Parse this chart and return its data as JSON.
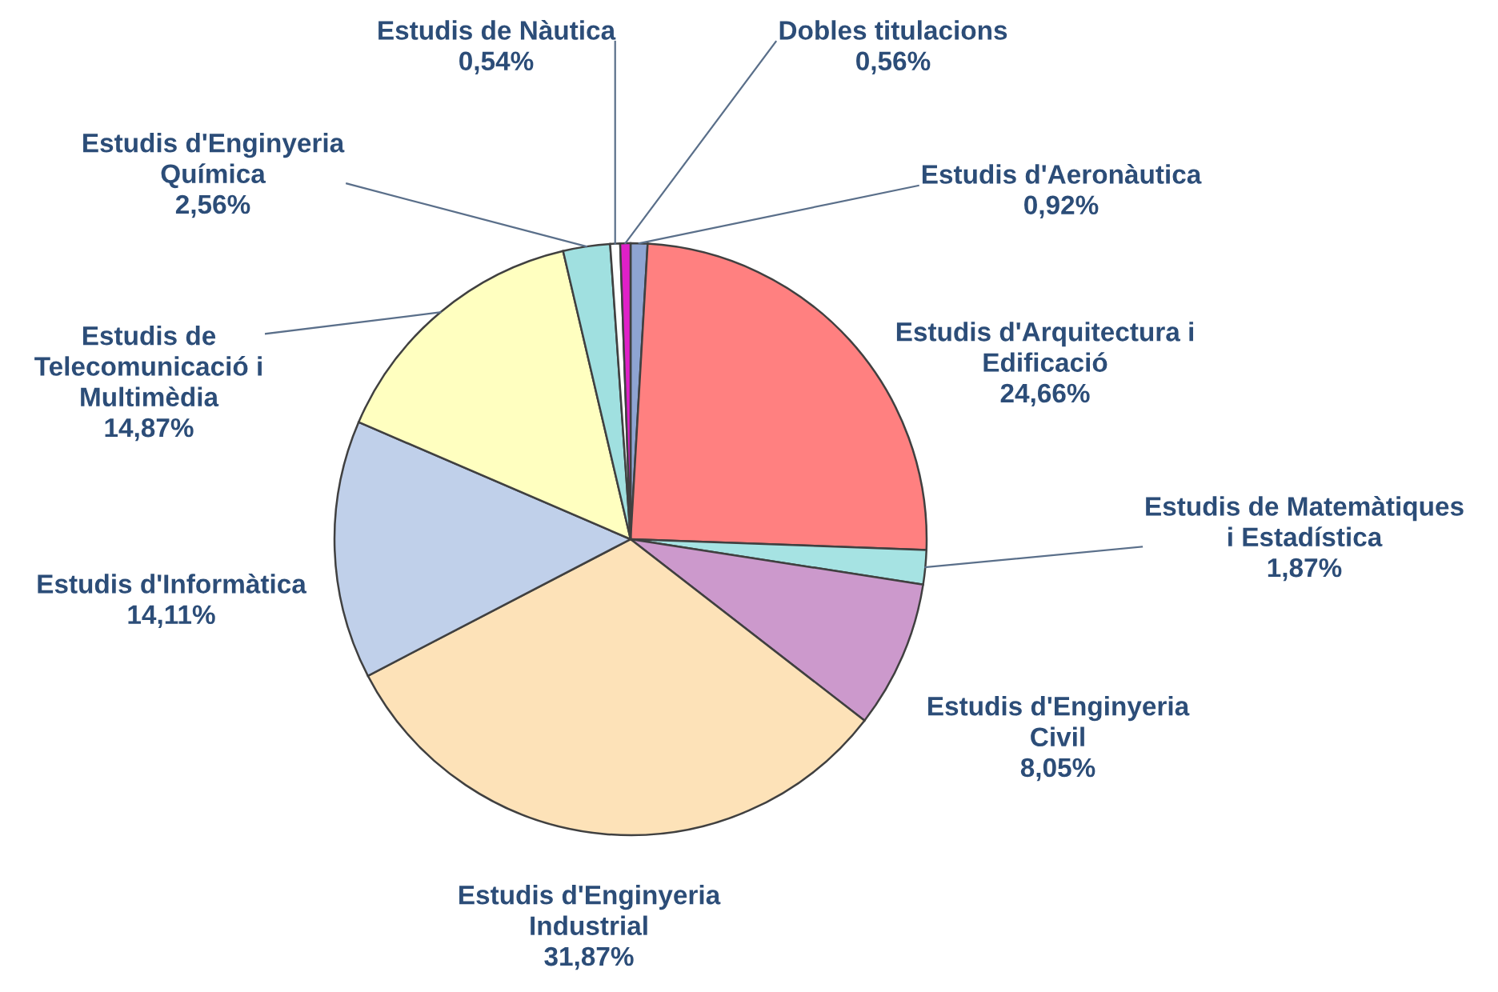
{
  "chart_data": {
    "type": "pie",
    "categories": [
      "Estudis d'Aeronàutica",
      "Estudis d'Arquitectura i\nEdificació",
      "Estudis de Matemàtiques\ni Estadística",
      "Estudis d'Enginyeria\nCivil",
      "Estudis d'Enginyeria\nIndustrial",
      "Estudis d'Informàtica",
      "Estudis de\nTelecomunicació i\nMultimèdia",
      "Estudis d'Enginyeria\nQuímica",
      "Estudis de Nàutica",
      "Dobles titulacions"
    ],
    "values": [
      0.92,
      24.66,
      1.87,
      8.05,
      31.87,
      14.11,
      14.87,
      2.56,
      0.54,
      0.56
    ],
    "value_labels": [
      "0,92%",
      "24,66%",
      "1,87%",
      "8,05%",
      "31,87%",
      "14,11%",
      "14,87%",
      "2,56%",
      "0,54%",
      "0,56%"
    ],
    "colors": [
      "#8ea4d2",
      "#ff8080",
      "#a6e3e3",
      "#cc99cc",
      "#fde2b8",
      "#c0d0ea",
      "#ffffc0",
      "#a0e0e0",
      "#ffffff",
      "#e020c8"
    ],
    "legend": false
  }
}
